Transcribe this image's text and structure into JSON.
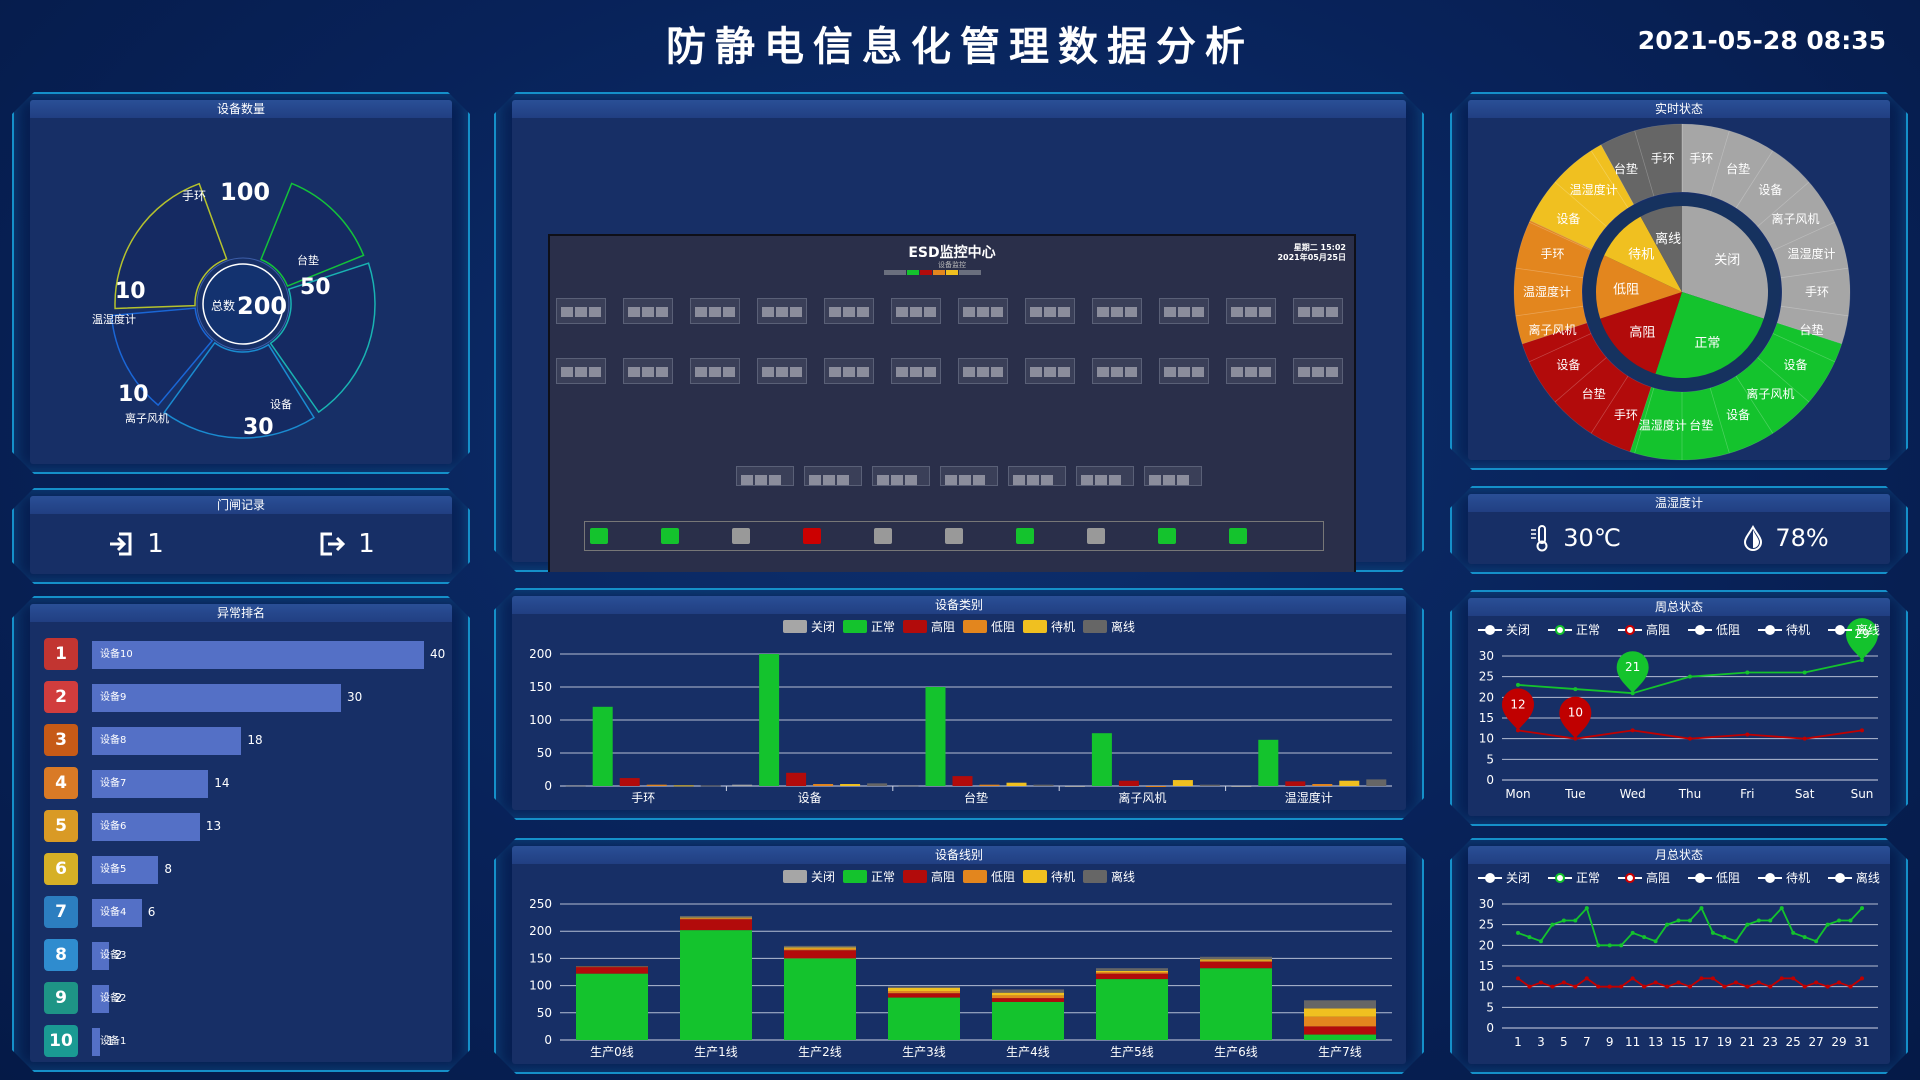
{
  "header": {
    "title": "防静电信息化管理数据分析",
    "datetime": "2021-05-28 08:35"
  },
  "device_count": {
    "title": "设备数量",
    "total_label": "总数",
    "total_value": "200",
    "segments": [
      {
        "label": "手环",
        "value": "100"
      },
      {
        "label": "台垫",
        "value": "50"
      },
      {
        "label": "设备",
        "value": "30"
      },
      {
        "label": "离子风机",
        "value": "10"
      },
      {
        "label": "温湿度计",
        "value": "10"
      }
    ]
  },
  "gate": {
    "title": "门闸记录",
    "in_value": "1",
    "out_value": "1"
  },
  "ranking": {
    "title": "异常排名",
    "items": [
      {
        "rank": "1",
        "name": "设备10",
        "value": 40,
        "color": "#c23531"
      },
      {
        "rank": "2",
        "name": "设备9",
        "value": 30,
        "color": "#d13d3d"
      },
      {
        "rank": "3",
        "name": "设备8",
        "value": 18,
        "color": "#c65a17"
      },
      {
        "rank": "4",
        "name": "设备7",
        "value": 14,
        "color": "#d97a26"
      },
      {
        "rank": "5",
        "name": "设备6",
        "value": 13,
        "color": "#d99a25"
      },
      {
        "rank": "6",
        "name": "设备5",
        "value": 8,
        "color": "#d6b026"
      },
      {
        "rank": "7",
        "name": "设备4",
        "value": 6,
        "color": "#2c7ec0"
      },
      {
        "rank": "8",
        "name": "设备3",
        "value": 2,
        "color": "#2f8ccf"
      },
      {
        "rank": "9",
        "name": "设备2",
        "value": 2,
        "color": "#1e9586"
      },
      {
        "rank": "10",
        "name": "设备1",
        "value": 1,
        "color": "#1a9a93"
      }
    ]
  },
  "monitor": {
    "title": "ESD监控中心",
    "subtitle": "设备监控",
    "clock": "星期二 15:02",
    "date": "2021年05月25日",
    "page_count": 5,
    "active_page": 3
  },
  "realtime": {
    "title": "实时状态",
    "inner": [
      {
        "label": "关闭",
        "value": 30,
        "color": "#a6a6a6"
      },
      {
        "label": "正常",
        "value": 25,
        "color": "#14c32d"
      },
      {
        "label": "高阻",
        "value": 15,
        "color": "#b20b0b"
      },
      {
        "label": "低阻",
        "value": 12,
        "color": "#e3861e"
      },
      {
        "label": "待机",
        "value": 10,
        "color": "#f0c020"
      },
      {
        "label": "离线",
        "value": 8,
        "color": "#666666"
      }
    ],
    "outer_labels": [
      "手环",
      "台垫",
      "设备",
      "离子风机",
      "温湿度计",
      "手环",
      "台垫",
      "设备",
      "离子风机",
      "设备",
      "台垫",
      "温湿度计",
      "手环",
      "台垫",
      "设备",
      "离子风机",
      "温湿度计",
      "手环",
      "设备",
      "温湿度计",
      "台垫",
      "手环"
    ]
  },
  "env": {
    "title": "温湿度计",
    "temperature": "30℃",
    "humidity": "78%"
  },
  "legend": {
    "items": [
      {
        "label": "关闭",
        "color": "#a6a6a6"
      },
      {
        "label": "正常",
        "color": "#14c32d"
      },
      {
        "label": "高阻",
        "color": "#b20b0b"
      },
      {
        "label": "低阻",
        "color": "#e3861e"
      },
      {
        "label": "待机",
        "color": "#f0c020"
      },
      {
        "label": "离线",
        "color": "#666666"
      }
    ]
  },
  "chart_data": [
    {
      "type": "bar",
      "title": "设备类别",
      "categories": [
        "手环",
        "设备",
        "台垫",
        "离子风机",
        "温湿度计"
      ],
      "ylim": [
        0,
        200
      ],
      "series": [
        {
          "name": "关闭",
          "values": [
            1,
            2,
            1,
            0,
            0
          ]
        },
        {
          "name": "正常",
          "values": [
            120,
            200,
            150,
            80,
            70
          ]
        },
        {
          "name": "高阻",
          "values": [
            12,
            20,
            15,
            8,
            7
          ]
        },
        {
          "name": "低阻",
          "values": [
            2,
            3,
            2,
            0,
            3
          ]
        },
        {
          "name": "待机",
          "values": [
            1,
            3,
            5,
            9,
            8
          ]
        },
        {
          "name": "离线",
          "values": [
            1,
            4,
            2,
            2,
            10
          ]
        }
      ]
    },
    {
      "type": "bar",
      "stacked": true,
      "title": "设备线别",
      "categories": [
        "生产0线",
        "生产1线",
        "生产2线",
        "生产3线",
        "生产4线",
        "生产5线",
        "生产6线",
        "生产7线"
      ],
      "ylim": [
        0,
        250
      ],
      "series": [
        {
          "name": "关闭",
          "values": [
            0,
            0,
            0,
            0,
            0,
            0,
            0,
            0
          ]
        },
        {
          "name": "正常",
          "values": [
            122,
            202,
            150,
            78,
            70,
            112,
            132,
            10
          ]
        },
        {
          "name": "高阻",
          "values": [
            12,
            20,
            15,
            8,
            7,
            10,
            12,
            15
          ]
        },
        {
          "name": "低阻",
          "values": [
            1,
            2,
            3,
            4,
            5,
            3,
            2,
            18
          ]
        },
        {
          "name": "待机",
          "values": [
            0,
            1,
            2,
            6,
            5,
            2,
            2,
            15
          ]
        },
        {
          "name": "离线",
          "values": [
            0,
            3,
            3,
            2,
            6,
            5,
            5,
            15
          ]
        }
      ]
    },
    {
      "type": "line",
      "title": "周总状态",
      "x": [
        "Mon",
        "Tue",
        "Wed",
        "Thu",
        "Fri",
        "Sat",
        "Sun"
      ],
      "ylim": [
        0,
        30
      ],
      "series": [
        {
          "name": "正常",
          "values": [
            23,
            22,
            21,
            25,
            26,
            26,
            29
          ],
          "pins": [
            [
              2,
              21
            ],
            [
              6,
              29
            ]
          ]
        },
        {
          "name": "高阻",
          "values": [
            12,
            10,
            12,
            10,
            11,
            10,
            12
          ],
          "pins": [
            [
              0,
              12
            ],
            [
              1,
              10
            ]
          ]
        }
      ]
    },
    {
      "type": "line",
      "title": "月总状态",
      "x": [
        1,
        2,
        3,
        4,
        5,
        6,
        7,
        8,
        9,
        10,
        11,
        12,
        13,
        14,
        15,
        16,
        17,
        18,
        19,
        20,
        21,
        22,
        23,
        24,
        25,
        26,
        27,
        28,
        29,
        30,
        31
      ],
      "xticks": [
        1,
        3,
        5,
        7,
        9,
        11,
        13,
        15,
        17,
        19,
        21,
        23,
        25,
        27,
        29,
        31
      ],
      "ylim": [
        0,
        30
      ],
      "series": [
        {
          "name": "正常",
          "values": [
            23,
            22,
            21,
            25,
            26,
            26,
            29,
            20,
            20,
            20,
            23,
            22,
            21,
            25,
            26,
            26,
            29,
            23,
            22,
            21,
            25,
            26,
            26,
            29,
            23,
            22,
            21,
            25,
            26,
            26,
            29
          ]
        },
        {
          "name": "高阻",
          "values": [
            12,
            10,
            11,
            10,
            11,
            10,
            12,
            10,
            10,
            10,
            12,
            10,
            11,
            10,
            11,
            10,
            12,
            12,
            10,
            11,
            10,
            11,
            10,
            12,
            12,
            10,
            11,
            10,
            11,
            10,
            12
          ]
        }
      ]
    }
  ]
}
